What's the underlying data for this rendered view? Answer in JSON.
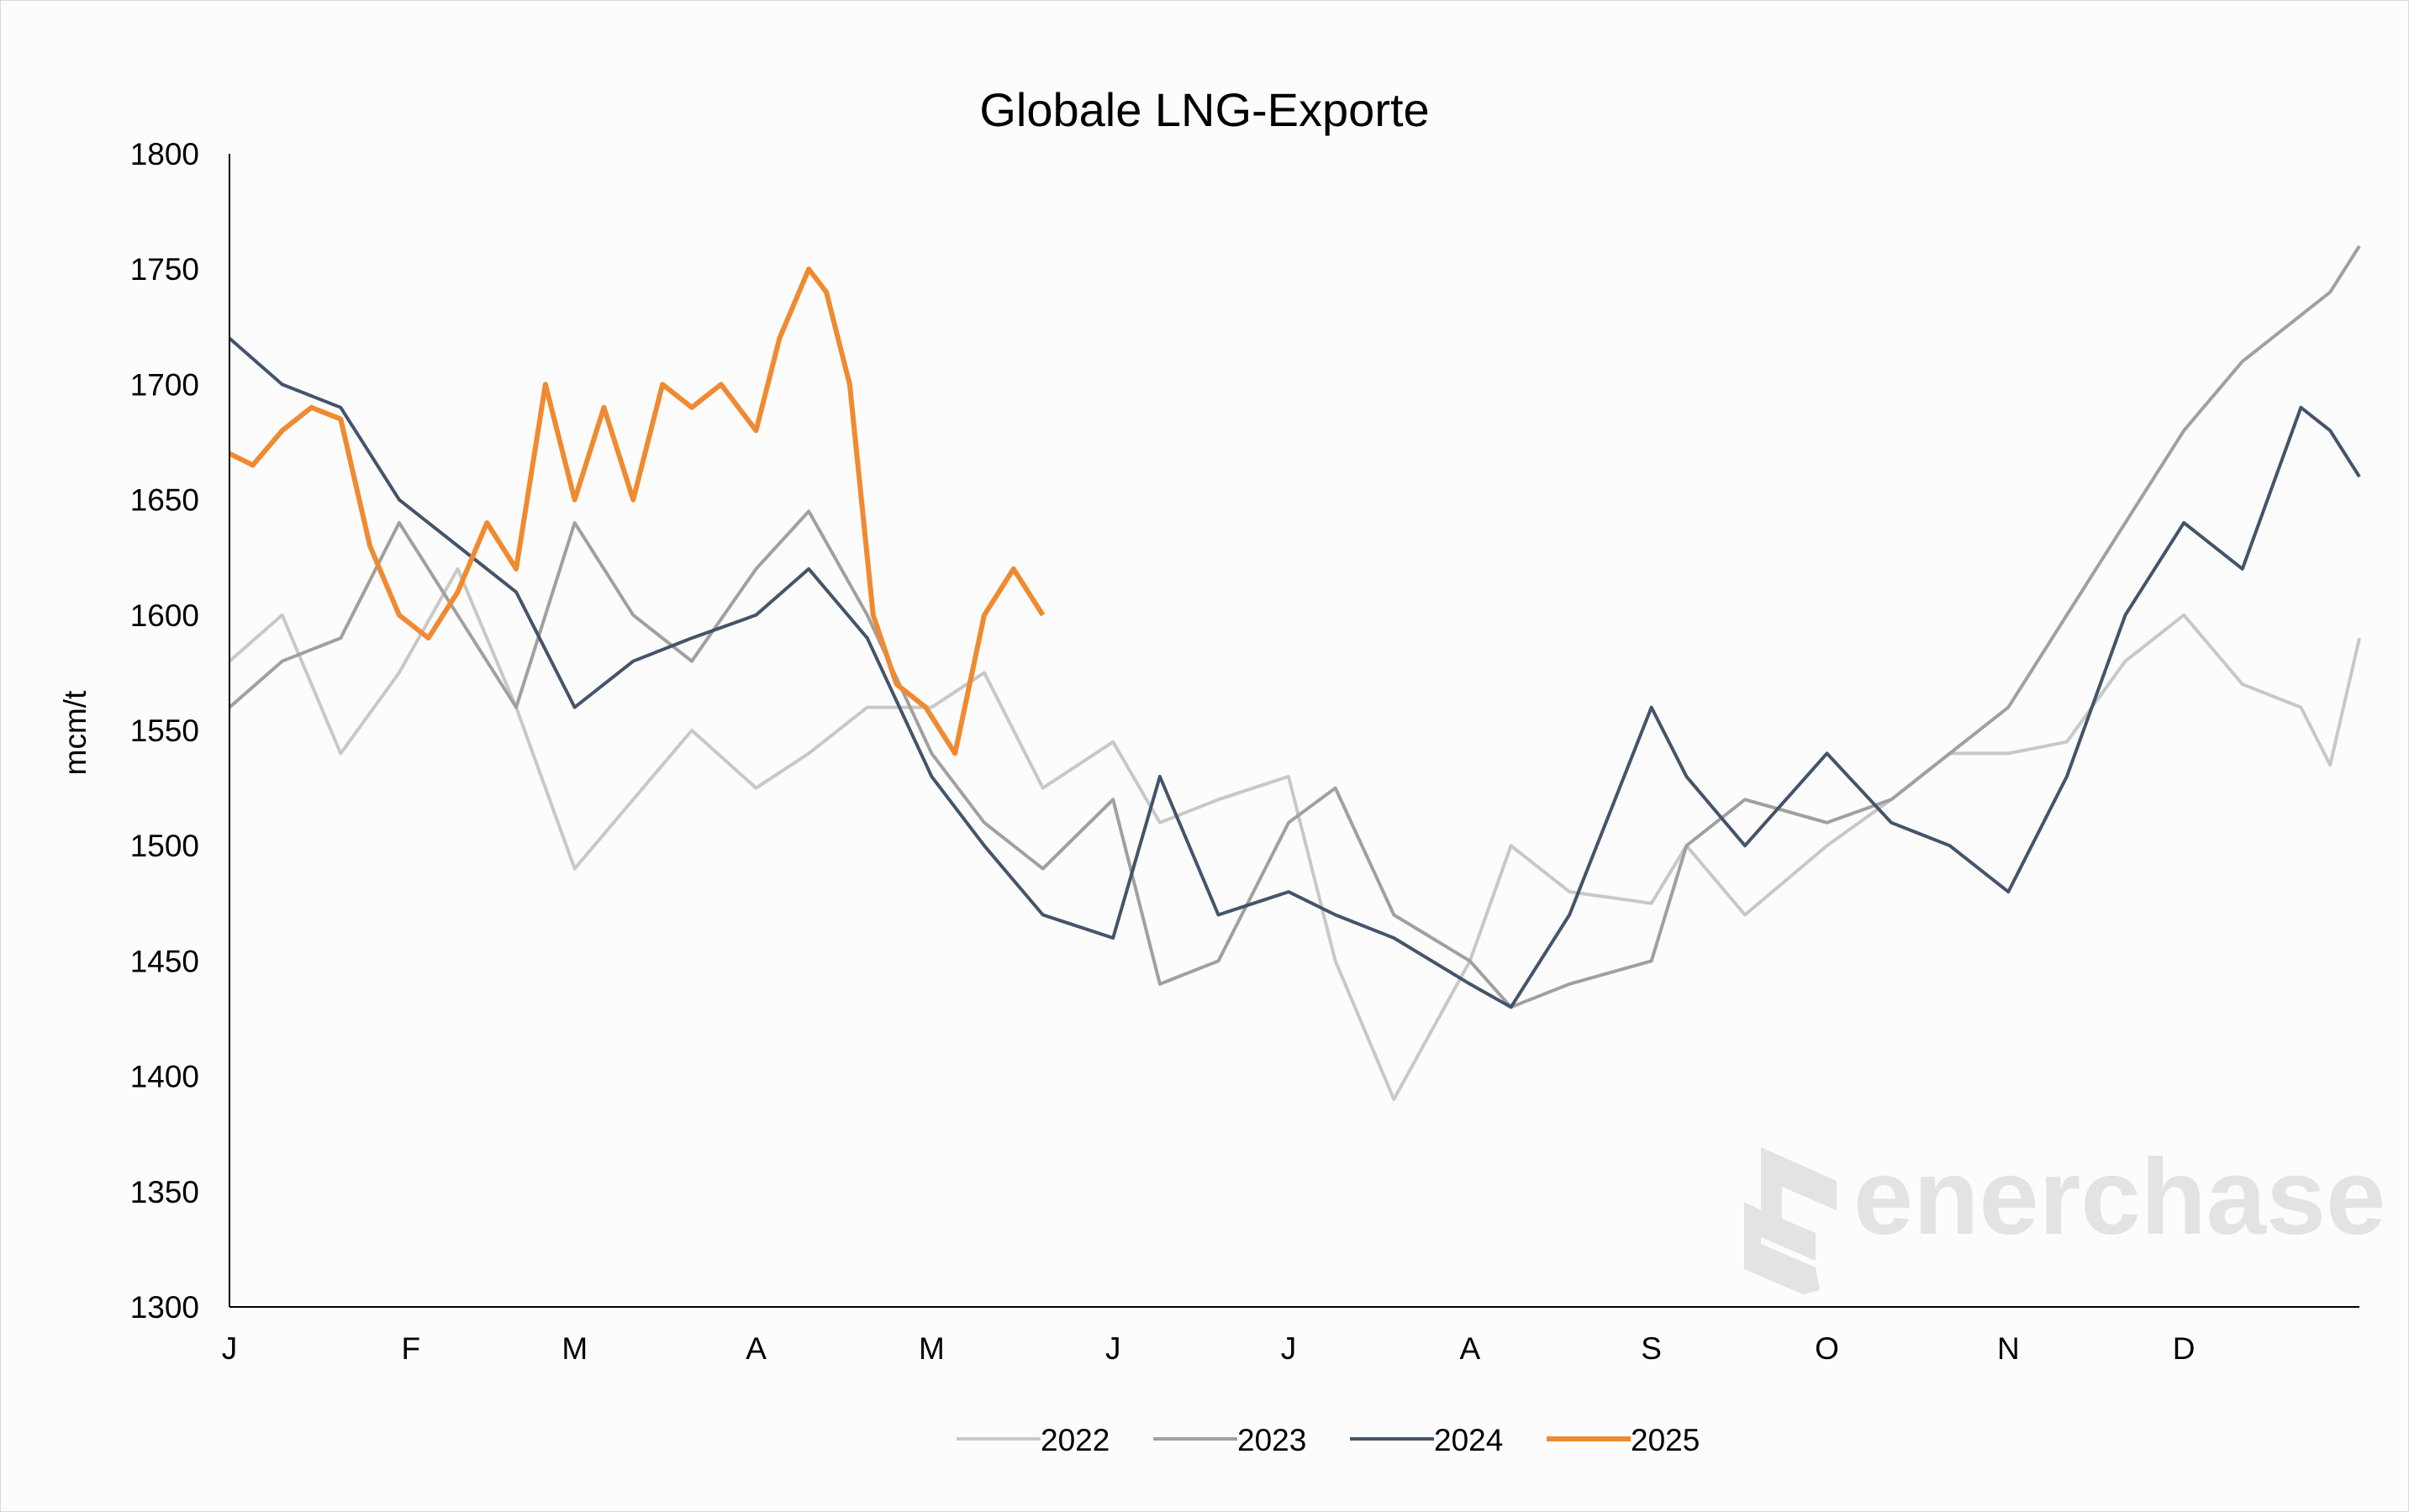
{
  "chart_data": {
    "type": "line",
    "title": "Globale LNG-Exporte",
    "ylabel": "mcm/t",
    "xlabel": "",
    "ylim": [
      1300,
      1800
    ],
    "yticks": [
      1300,
      1350,
      1400,
      1450,
      1500,
      1550,
      1600,
      1650,
      1700,
      1750,
      1800
    ],
    "x_domain": [
      1,
      365
    ],
    "month_labels": [
      "J",
      "F",
      "M",
      "A",
      "M",
      "J",
      "J",
      "A",
      "S",
      "O",
      "N",
      "D"
    ],
    "month_label_days": [
      1,
      32,
      60,
      91,
      121,
      152,
      182,
      213,
      244,
      274,
      305,
      335
    ],
    "legend_position": "bottom",
    "grid": false,
    "series": [
      {
        "name": "2022",
        "color": "#c8c8c8",
        "x": [
          1,
          10,
          20,
          30,
          40,
          50,
          60,
          70,
          80,
          91,
          100,
          110,
          121,
          130,
          140,
          152,
          160,
          170,
          182,
          190,
          200,
          213,
          220,
          230,
          244,
          250,
          260,
          274,
          285,
          295,
          305,
          315,
          325,
          335,
          345,
          355,
          360,
          365
        ],
        "y": [
          1580,
          1600,
          1540,
          1575,
          1620,
          1560,
          1490,
          1520,
          1550,
          1525,
          1540,
          1560,
          1560,
          1575,
          1525,
          1545,
          1510,
          1520,
          1530,
          1450,
          1390,
          1450,
          1500,
          1480,
          1475,
          1500,
          1470,
          1500,
          1520,
          1540,
          1540,
          1545,
          1580,
          1600,
          1570,
          1560,
          1535,
          1590
        ]
      },
      {
        "name": "2023",
        "color": "#a0a0a0",
        "x": [
          1,
          10,
          20,
          30,
          40,
          50,
          60,
          70,
          80,
          91,
          100,
          110,
          121,
          130,
          140,
          152,
          160,
          170,
          182,
          190,
          200,
          213,
          220,
          230,
          244,
          250,
          260,
          274,
          285,
          295,
          305,
          315,
          325,
          335,
          345,
          355,
          360,
          365
        ],
        "y": [
          1560,
          1580,
          1590,
          1640,
          1600,
          1560,
          1640,
          1600,
          1580,
          1620,
          1645,
          1600,
          1540,
          1510,
          1490,
          1520,
          1440,
          1450,
          1510,
          1525,
          1470,
          1450,
          1430,
          1440,
          1450,
          1500,
          1520,
          1510,
          1520,
          1540,
          1560,
          1600,
          1640,
          1680,
          1710,
          1730,
          1740,
          1760
        ]
      },
      {
        "name": "2024",
        "color": "#44546a",
        "x": [
          1,
          10,
          20,
          30,
          40,
          50,
          60,
          70,
          80,
          91,
          100,
          110,
          121,
          130,
          140,
          152,
          160,
          170,
          182,
          190,
          200,
          213,
          220,
          230,
          244,
          250,
          260,
          274,
          285,
          295,
          305,
          315,
          325,
          335,
          345,
          355,
          360,
          365
        ],
        "y": [
          1720,
          1700,
          1690,
          1650,
          1630,
          1610,
          1560,
          1580,
          1590,
          1600,
          1620,
          1590,
          1530,
          1500,
          1470,
          1460,
          1530,
          1470,
          1480,
          1470,
          1460,
          1440,
          1430,
          1470,
          1560,
          1530,
          1500,
          1540,
          1510,
          1500,
          1480,
          1530,
          1600,
          1640,
          1620,
          1690,
          1680,
          1660
        ]
      },
      {
        "name": "2025",
        "color": "#f08a30",
        "x": [
          1,
          5,
          10,
          15,
          20,
          25,
          30,
          35,
          40,
          45,
          50,
          55,
          60,
          65,
          70,
          75,
          80,
          85,
          91,
          95,
          100,
          103,
          107,
          111,
          115,
          120,
          125,
          130,
          135,
          140
        ],
        "y": [
          1670,
          1665,
          1680,
          1690,
          1685,
          1630,
          1600,
          1590,
          1610,
          1640,
          1620,
          1700,
          1650,
          1690,
          1650,
          1700,
          1690,
          1700,
          1680,
          1720,
          1750,
          1740,
          1700,
          1600,
          1570,
          1560,
          1540,
          1600,
          1620,
          1600
        ]
      }
    ],
    "watermark": "enerchase"
  }
}
